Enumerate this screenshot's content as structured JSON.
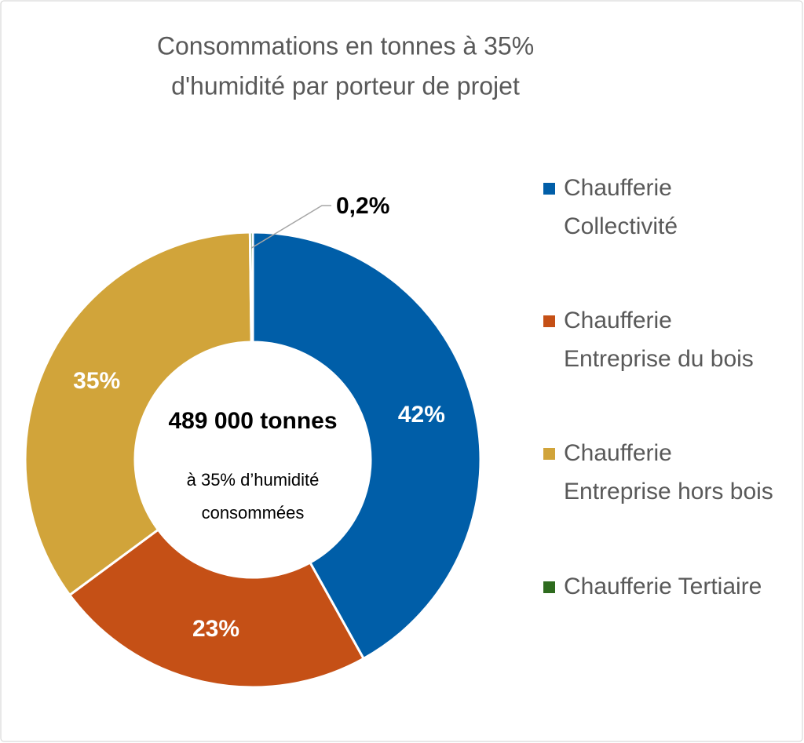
{
  "chart_data": {
    "type": "donut",
    "title": [
      "Consommations en tonnes à 35%",
      "d'humidité par porteur de projet"
    ],
    "center_label": "489 000 tonnes",
    "center_sublabel": [
      "à 35% d’humidité",
      "consommées"
    ],
    "categories": [
      "Chaufferie Collectivité",
      "Chaufferie Entreprise du bois",
      "Chaufferie Entreprise hors bois",
      "Chaufferie Tertiaire"
    ],
    "values": [
      42,
      23,
      35,
      0.2
    ],
    "value_labels": [
      "42%",
      "23%",
      "35%",
      "0,2%"
    ],
    "colors": [
      "#005ea8",
      "#c55016",
      "#d1a43a",
      "#2e6b1e"
    ]
  }
}
